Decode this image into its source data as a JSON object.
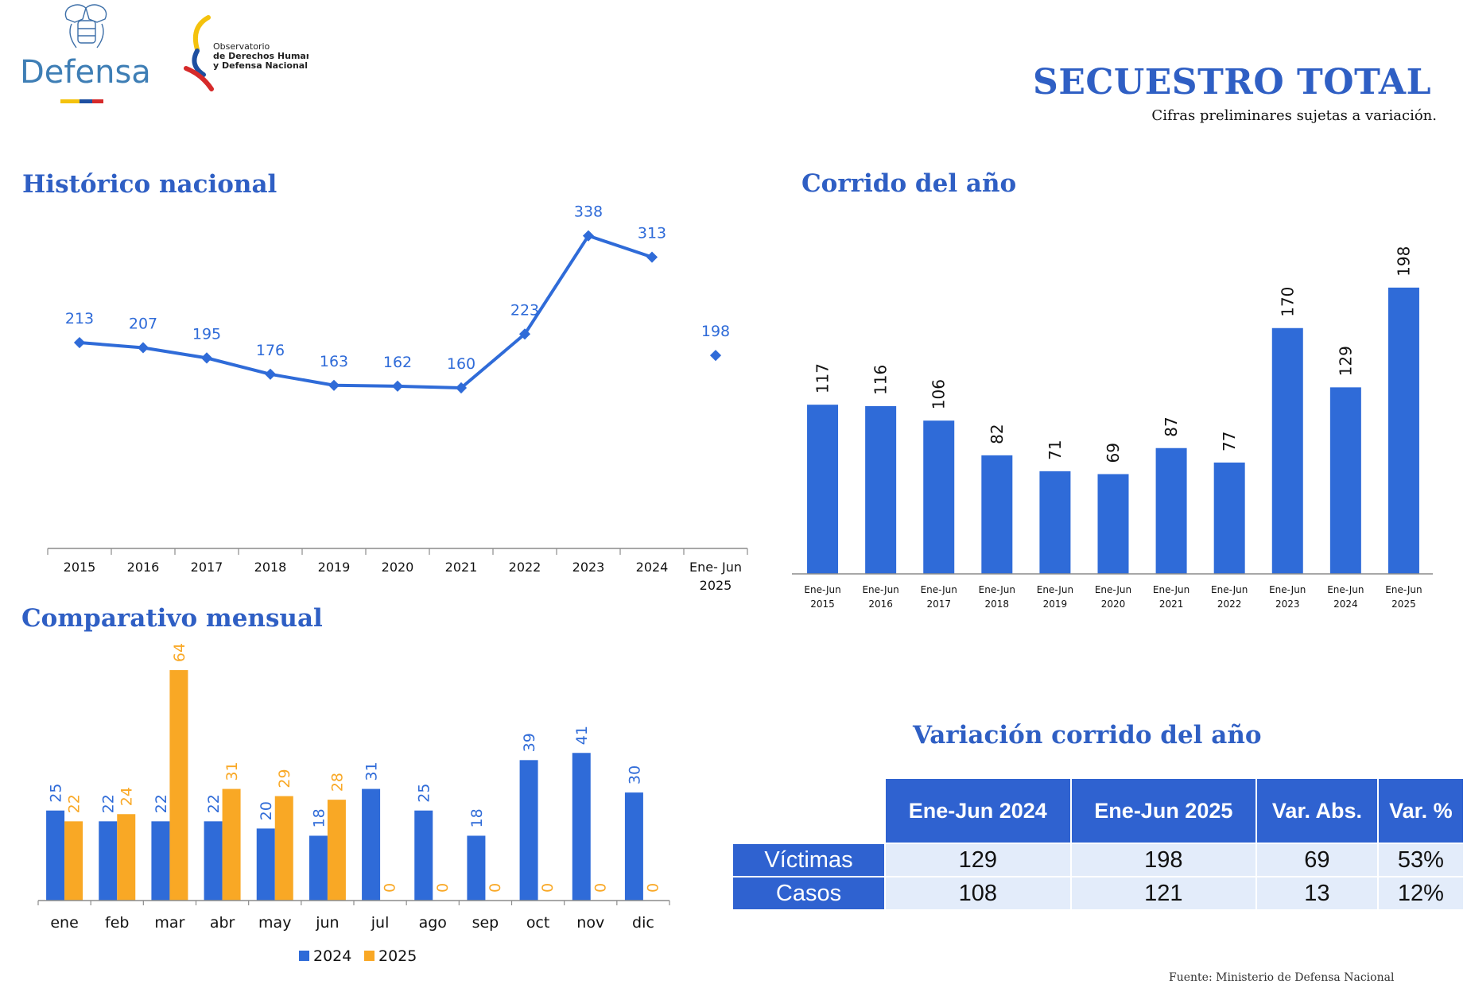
{
  "header": {
    "logo_defensa_text": "Defensa",
    "logo_observatorio_text": [
      "Observatorio",
      "de Derechos Humanos",
      "y Defensa Nacional"
    ],
    "title": "SECUESTRO TOTAL",
    "subtitle": "Cifras preliminares sujetas a variación."
  },
  "colors": {
    "blue": "#2f6bd8",
    "orange": "#f9a825",
    "title_blue": "#2f5fc4",
    "table_header": "#2f62d0",
    "table_cell": "#e3ecfa"
  },
  "sections": {
    "historico_title": "Histórico nacional",
    "corrido_title": "Corrido del año",
    "mensual_title": "Comparativo mensual",
    "variacion_title": "Variación corrido del año"
  },
  "chart_data": [
    {
      "id": "historico",
      "type": "line",
      "title": "Histórico nacional",
      "categories": [
        "2015",
        "2016",
        "2017",
        "2018",
        "2019",
        "2020",
        "2021",
        "2022",
        "2023",
        "2024",
        "Ene- Jun 2025"
      ],
      "values": [
        213,
        207,
        195,
        176,
        163,
        162,
        160,
        223,
        338,
        313,
        198
      ],
      "connected_through_index": 9,
      "ylim": [
        0,
        400
      ]
    },
    {
      "id": "corrido",
      "type": "bar",
      "title": "Corrido del año",
      "categories": [
        [
          "Ene-Jun",
          "2015"
        ],
        [
          "Ene-Jun",
          "2016"
        ],
        [
          "Ene-Jun",
          "2017"
        ],
        [
          "Ene-Jun",
          "2018"
        ],
        [
          "Ene-Jun",
          "2019"
        ],
        [
          "Ene-Jun",
          "2020"
        ],
        [
          "Ene-Jun",
          "2021"
        ],
        [
          "Ene-Jun",
          "2022"
        ],
        [
          "Ene-Jun",
          "2023"
        ],
        [
          "Ene-Jun",
          "2024"
        ],
        [
          "Ene-Jun",
          "2025"
        ]
      ],
      "values": [
        117,
        116,
        106,
        82,
        71,
        69,
        87,
        77,
        170,
        129,
        198
      ],
      "ylim": [
        0,
        210
      ]
    },
    {
      "id": "mensual",
      "type": "bar",
      "title": "Comparativo mensual",
      "categories": [
        "ene",
        "feb",
        "mar",
        "abr",
        "may",
        "jun",
        "jul",
        "ago",
        "sep",
        "oct",
        "nov",
        "dic"
      ],
      "series": [
        {
          "name": "2024",
          "values": [
            25,
            22,
            22,
            22,
            20,
            18,
            31,
            25,
            18,
            39,
            41,
            30
          ]
        },
        {
          "name": "2025",
          "values": [
            22,
            24,
            64,
            31,
            29,
            28,
            0,
            0,
            0,
            0,
            0,
            0
          ]
        }
      ],
      "legend": "bottom",
      "ylim": [
        0,
        66
      ]
    }
  ],
  "variacion_table": {
    "headers": [
      "Ene-Jun 2024",
      "Ene-Jun 2025",
      "Var. Abs.",
      "Var. %"
    ],
    "rows": [
      {
        "label": "Víctimas",
        "values": [
          "129",
          "198",
          "69",
          "53%"
        ]
      },
      {
        "label": "Casos",
        "values": [
          "108",
          "121",
          "13",
          "12%"
        ]
      }
    ]
  },
  "footer": {
    "source": "Fuente: Ministerio de Defensa Nacional"
  }
}
